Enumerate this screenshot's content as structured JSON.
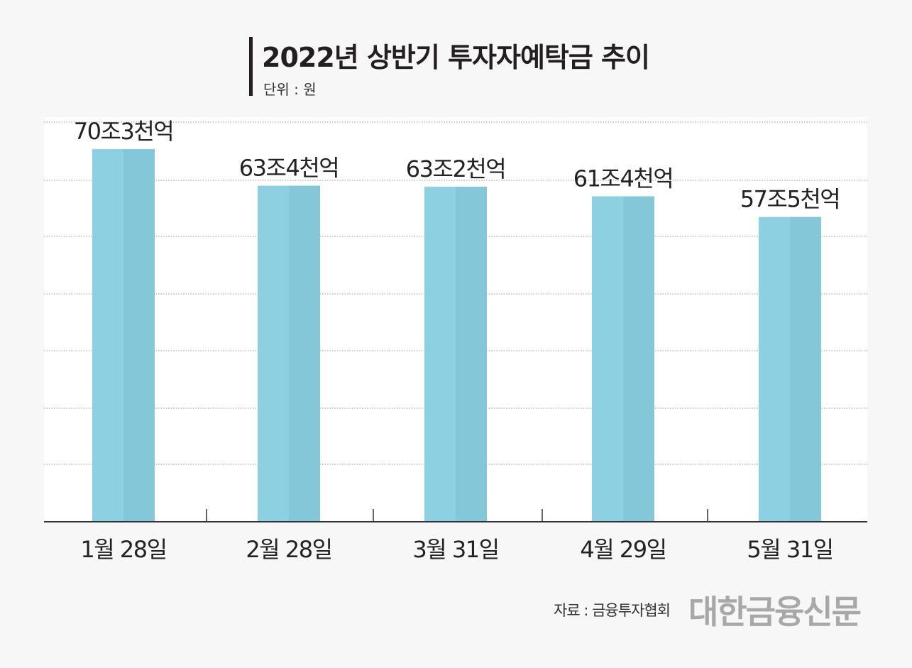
{
  "header": {
    "title": "2022년 상반기 투자자예탁금 추이",
    "unit": "단위 : 원"
  },
  "footer": {
    "source": "자료 : 금융투자협회",
    "publisher": "대한금융신문"
  },
  "colors": {
    "bar": "#8cd0e2",
    "bar_shade": "#84c7d9",
    "grid": "#9a9a9a",
    "axis": "#333333"
  },
  "chart_data": {
    "type": "bar",
    "categories": [
      "1월 28일",
      "2월 28일",
      "3월 31일",
      "4월 29일",
      "5월 31일"
    ],
    "values": [
      70.3,
      63.4,
      63.2,
      61.4,
      57.5
    ],
    "value_unit": "조원",
    "data_labels": [
      "70조3천억",
      "63조4천억",
      "63조2천억",
      "61조4천억",
      "57조5천억"
    ],
    "ylim": [
      0,
      75
    ],
    "grid": true,
    "legend": "none",
    "xlabel": "",
    "ylabel": ""
  }
}
